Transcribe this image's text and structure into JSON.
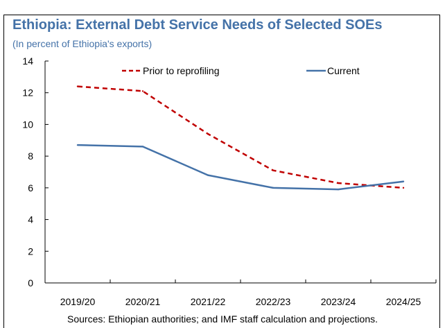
{
  "title": "Ethiopia: External Debt Service Needs of Selected SOEs",
  "subtitle": "(In percent of Ethiopia's exports)",
  "source": "Sources: Ethiopian authorities; and IMF staff calculation and projections.",
  "colors": {
    "title": "#4472a8",
    "prior": "#c00000",
    "current": "#4472a8"
  },
  "chart_data": {
    "type": "line",
    "categories": [
      "2019/20",
      "2020/21",
      "2021/22",
      "2022/23",
      "2023/24",
      "2024/25"
    ],
    "series": [
      {
        "name": "Prior to reprofiling",
        "values": [
          12.4,
          12.1,
          9.4,
          7.1,
          6.3,
          6.0
        ],
        "style": "dashed",
        "color": "#c00000"
      },
      {
        "name": "Current",
        "values": [
          8.7,
          8.6,
          6.8,
          6.0,
          5.9,
          6.4
        ],
        "style": "solid",
        "color": "#4472a8"
      }
    ],
    "yticks": [
      0,
      2,
      4,
      6,
      8,
      10,
      12,
      14
    ],
    "ylim": [
      0,
      14
    ],
    "xlabel": "",
    "ylabel": "",
    "grid": false,
    "legend": "top"
  }
}
